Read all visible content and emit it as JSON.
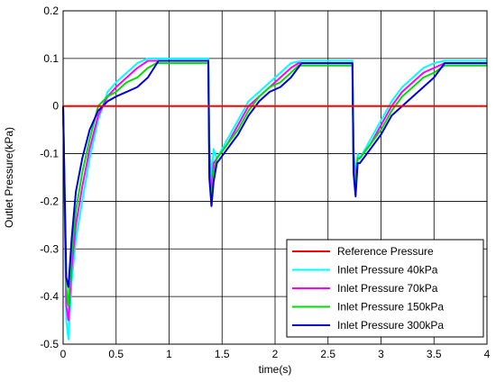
{
  "chart_data": {
    "type": "line",
    "title": "",
    "xlabel": "time(s)",
    "ylabel": "Outlet Pressure(kPa)",
    "xlim": [
      0,
      4
    ],
    "ylim": [
      -0.5,
      0.2
    ],
    "xticks": [
      0,
      0.5,
      1,
      1.5,
      2,
      2.5,
      3,
      3.5,
      4
    ],
    "xtick_labels": [
      "0",
      "0.5",
      "1",
      "1.5",
      "2",
      "2.5",
      "3",
      "3.5",
      "4"
    ],
    "yticks": [
      -0.5,
      -0.4,
      -0.3,
      -0.2,
      -0.1,
      0,
      0.1,
      0.2
    ],
    "ytick_labels": [
      "-0.5",
      "-0.4",
      "-0.3",
      "-0.2",
      "-0.1",
      "0",
      "0.1",
      "0.2"
    ],
    "grid": true,
    "legend_position": "bottom-right",
    "series": [
      {
        "name": "Reference Pressure",
        "color": "#ff0000",
        "x": [
          0,
          4
        ],
        "y": [
          0,
          0
        ]
      },
      {
        "name": "Inlet Pressure 40kPa",
        "color": "#00ffff",
        "x": [
          0,
          0.03,
          0.05,
          0.08,
          0.12,
          0.18,
          0.25,
          0.33,
          0.42,
          0.5,
          0.6,
          0.7,
          0.8,
          0.9,
          1.0,
          1.1,
          1.2,
          1.37,
          1.38,
          1.4,
          1.42,
          1.45,
          1.55,
          1.65,
          1.75,
          1.85,
          1.95,
          2.05,
          2.15,
          2.25,
          2.4,
          2.55,
          2.73,
          2.74,
          2.76,
          2.78,
          2.8,
          2.9,
          3.0,
          3.1,
          3.2,
          3.3,
          3.4,
          3.5,
          3.6,
          3.8,
          4.0
        ],
        "y": [
          0,
          -0.45,
          -0.49,
          -0.37,
          -0.28,
          -0.2,
          -0.11,
          -0.03,
          0.03,
          0.05,
          0.07,
          0.09,
          0.1,
          0.1,
          0.1,
          0.1,
          0.1,
          0.1,
          -0.07,
          -0.15,
          -0.09,
          -0.11,
          -0.07,
          -0.03,
          0.01,
          0.03,
          0.05,
          0.07,
          0.09,
          0.095,
          0.095,
          0.095,
          0.095,
          -0.08,
          -0.15,
          -0.1,
          -0.11,
          -0.07,
          -0.03,
          0.01,
          0.04,
          0.06,
          0.08,
          0.09,
          0.095,
          0.095,
          0.095
        ]
      },
      {
        "name": "Inlet Pressure 70kPa",
        "color": "#ff00ff",
        "x": [
          0,
          0.03,
          0.05,
          0.08,
          0.12,
          0.18,
          0.25,
          0.33,
          0.42,
          0.5,
          0.6,
          0.7,
          0.8,
          0.88,
          1.0,
          1.1,
          1.2,
          1.37,
          1.38,
          1.4,
          1.42,
          1.45,
          1.55,
          1.65,
          1.75,
          1.85,
          1.95,
          2.05,
          2.15,
          2.22,
          2.4,
          2.55,
          2.73,
          2.74,
          2.76,
          2.78,
          2.8,
          2.9,
          3.0,
          3.1,
          3.2,
          3.3,
          3.4,
          3.5,
          3.6,
          3.8,
          4.0
        ],
        "y": [
          0,
          -0.42,
          -0.45,
          -0.34,
          -0.25,
          -0.17,
          -0.09,
          -0.02,
          0.02,
          0.04,
          0.06,
          0.08,
          0.095,
          0.095,
          0.095,
          0.095,
          0.095,
          0.095,
          -0.1,
          -0.19,
          -0.12,
          -0.11,
          -0.08,
          -0.04,
          0.0,
          0.02,
          0.04,
          0.06,
          0.08,
          0.09,
          0.09,
          0.09,
          0.09,
          -0.1,
          -0.16,
          -0.11,
          -0.11,
          -0.08,
          -0.04,
          0.0,
          0.03,
          0.05,
          0.07,
          0.08,
          0.09,
          0.09,
          0.09
        ]
      },
      {
        "name": "Inlet Pressure 150kPa",
        "color": "#00dd00",
        "x": [
          0,
          0.03,
          0.05,
          0.08,
          0.12,
          0.18,
          0.25,
          0.33,
          0.42,
          0.5,
          0.6,
          0.7,
          0.8,
          0.88,
          1.0,
          1.1,
          1.2,
          1.37,
          1.38,
          1.4,
          1.42,
          1.45,
          1.55,
          1.65,
          1.75,
          1.85,
          1.95,
          2.05,
          2.15,
          2.22,
          2.4,
          2.55,
          2.73,
          2.74,
          2.76,
          2.78,
          2.8,
          2.9,
          3.0,
          3.1,
          3.2,
          3.3,
          3.4,
          3.5,
          3.6,
          3.8,
          4.0
        ],
        "y": [
          0,
          -0.38,
          -0.42,
          -0.31,
          -0.22,
          -0.14,
          -0.07,
          0.0,
          0.02,
          0.03,
          0.05,
          0.06,
          0.08,
          0.09,
          0.09,
          0.09,
          0.09,
          0.09,
          -0.12,
          -0.21,
          -0.14,
          -0.11,
          -0.08,
          -0.05,
          -0.01,
          0.02,
          0.04,
          0.05,
          0.07,
          0.085,
          0.085,
          0.085,
          0.085,
          -0.12,
          -0.17,
          -0.11,
          -0.11,
          -0.08,
          -0.05,
          -0.01,
          0.02,
          0.04,
          0.06,
          0.07,
          0.085,
          0.085,
          0.085
        ]
      },
      {
        "name": "Inlet Pressure 300kPa",
        "color": "#0000dd",
        "x": [
          0,
          0.03,
          0.05,
          0.08,
          0.12,
          0.18,
          0.25,
          0.33,
          0.42,
          0.5,
          0.6,
          0.7,
          0.8,
          0.9,
          1.0,
          1.1,
          1.2,
          1.37,
          1.38,
          1.4,
          1.42,
          1.45,
          1.55,
          1.65,
          1.75,
          1.85,
          1.95,
          2.05,
          2.15,
          2.25,
          2.4,
          2.55,
          2.73,
          2.74,
          2.76,
          2.78,
          2.8,
          2.9,
          3.0,
          3.1,
          3.2,
          3.3,
          3.4,
          3.5,
          3.6,
          3.8,
          4.0
        ],
        "y": [
          0,
          -0.36,
          -0.38,
          -0.28,
          -0.18,
          -0.11,
          -0.05,
          -0.01,
          0.01,
          0.02,
          0.03,
          0.04,
          0.06,
          0.095,
          0.095,
          0.095,
          0.095,
          0.095,
          -0.15,
          -0.21,
          -0.16,
          -0.12,
          -0.09,
          -0.06,
          -0.02,
          0.01,
          0.03,
          0.04,
          0.06,
          0.09,
          0.09,
          0.09,
          0.09,
          -0.14,
          -0.19,
          -0.12,
          -0.12,
          -0.09,
          -0.06,
          -0.02,
          0.0,
          0.02,
          0.04,
          0.06,
          0.09,
          0.09,
          0.09
        ]
      }
    ]
  }
}
